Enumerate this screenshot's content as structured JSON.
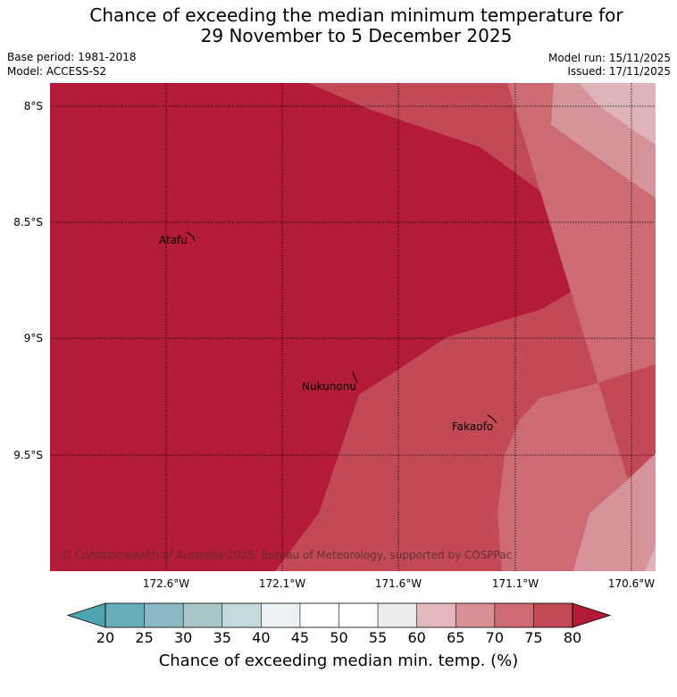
{
  "title_line1": "Chance of exceeding the median minimum temperature for",
  "title_line2": "29 November to 5 December 2025",
  "meta": {
    "base_period": "Base period: 1981-2018",
    "model": "Model: ACCESS-S2",
    "model_run": "Model run: 15/11/2025",
    "issued": "Issued: 17/11/2025"
  },
  "lat_labels": [
    "8°S",
    "8.5°S",
    "9°S",
    "9.5°S"
  ],
  "lon_labels": [
    "172.6°W",
    "172.1°W",
    "171.6°W",
    "171.1°W",
    "170.6°W"
  ],
  "places": [
    "Atafu",
    "Nukunonu",
    "Fakaofo"
  ],
  "copyright": "© Commonwealth of Australia 2025, Bureau of Meteorology, supported by COSPPac",
  "colorbar": {
    "ticks": [
      "20",
      "25",
      "30",
      "35",
      "40",
      "45",
      "50",
      "55",
      "60",
      "65",
      "70",
      "75",
      "80"
    ],
    "colors": [
      "#67aebb",
      "#8ab9c3",
      "#a9c7cb",
      "#c6d9dc",
      "#ecf2f3",
      "#ffffff",
      "#ffffff",
      "#ebebeb",
      "#e3b7bb",
      "#d98d95",
      "#cc6b74",
      "#c24a57"
    ],
    "under_color": "#4da3b0",
    "over_color": "#b31b38",
    "label": "Chance of exceeding median min. temp. (%)"
  },
  "region_colors": {
    "gt80": "#b31b38",
    "c75_80": "#c24a57",
    "c70_75": "#cc6b74",
    "c65_70": "#d5949a",
    "c60_65": "#dfb4b8"
  }
}
